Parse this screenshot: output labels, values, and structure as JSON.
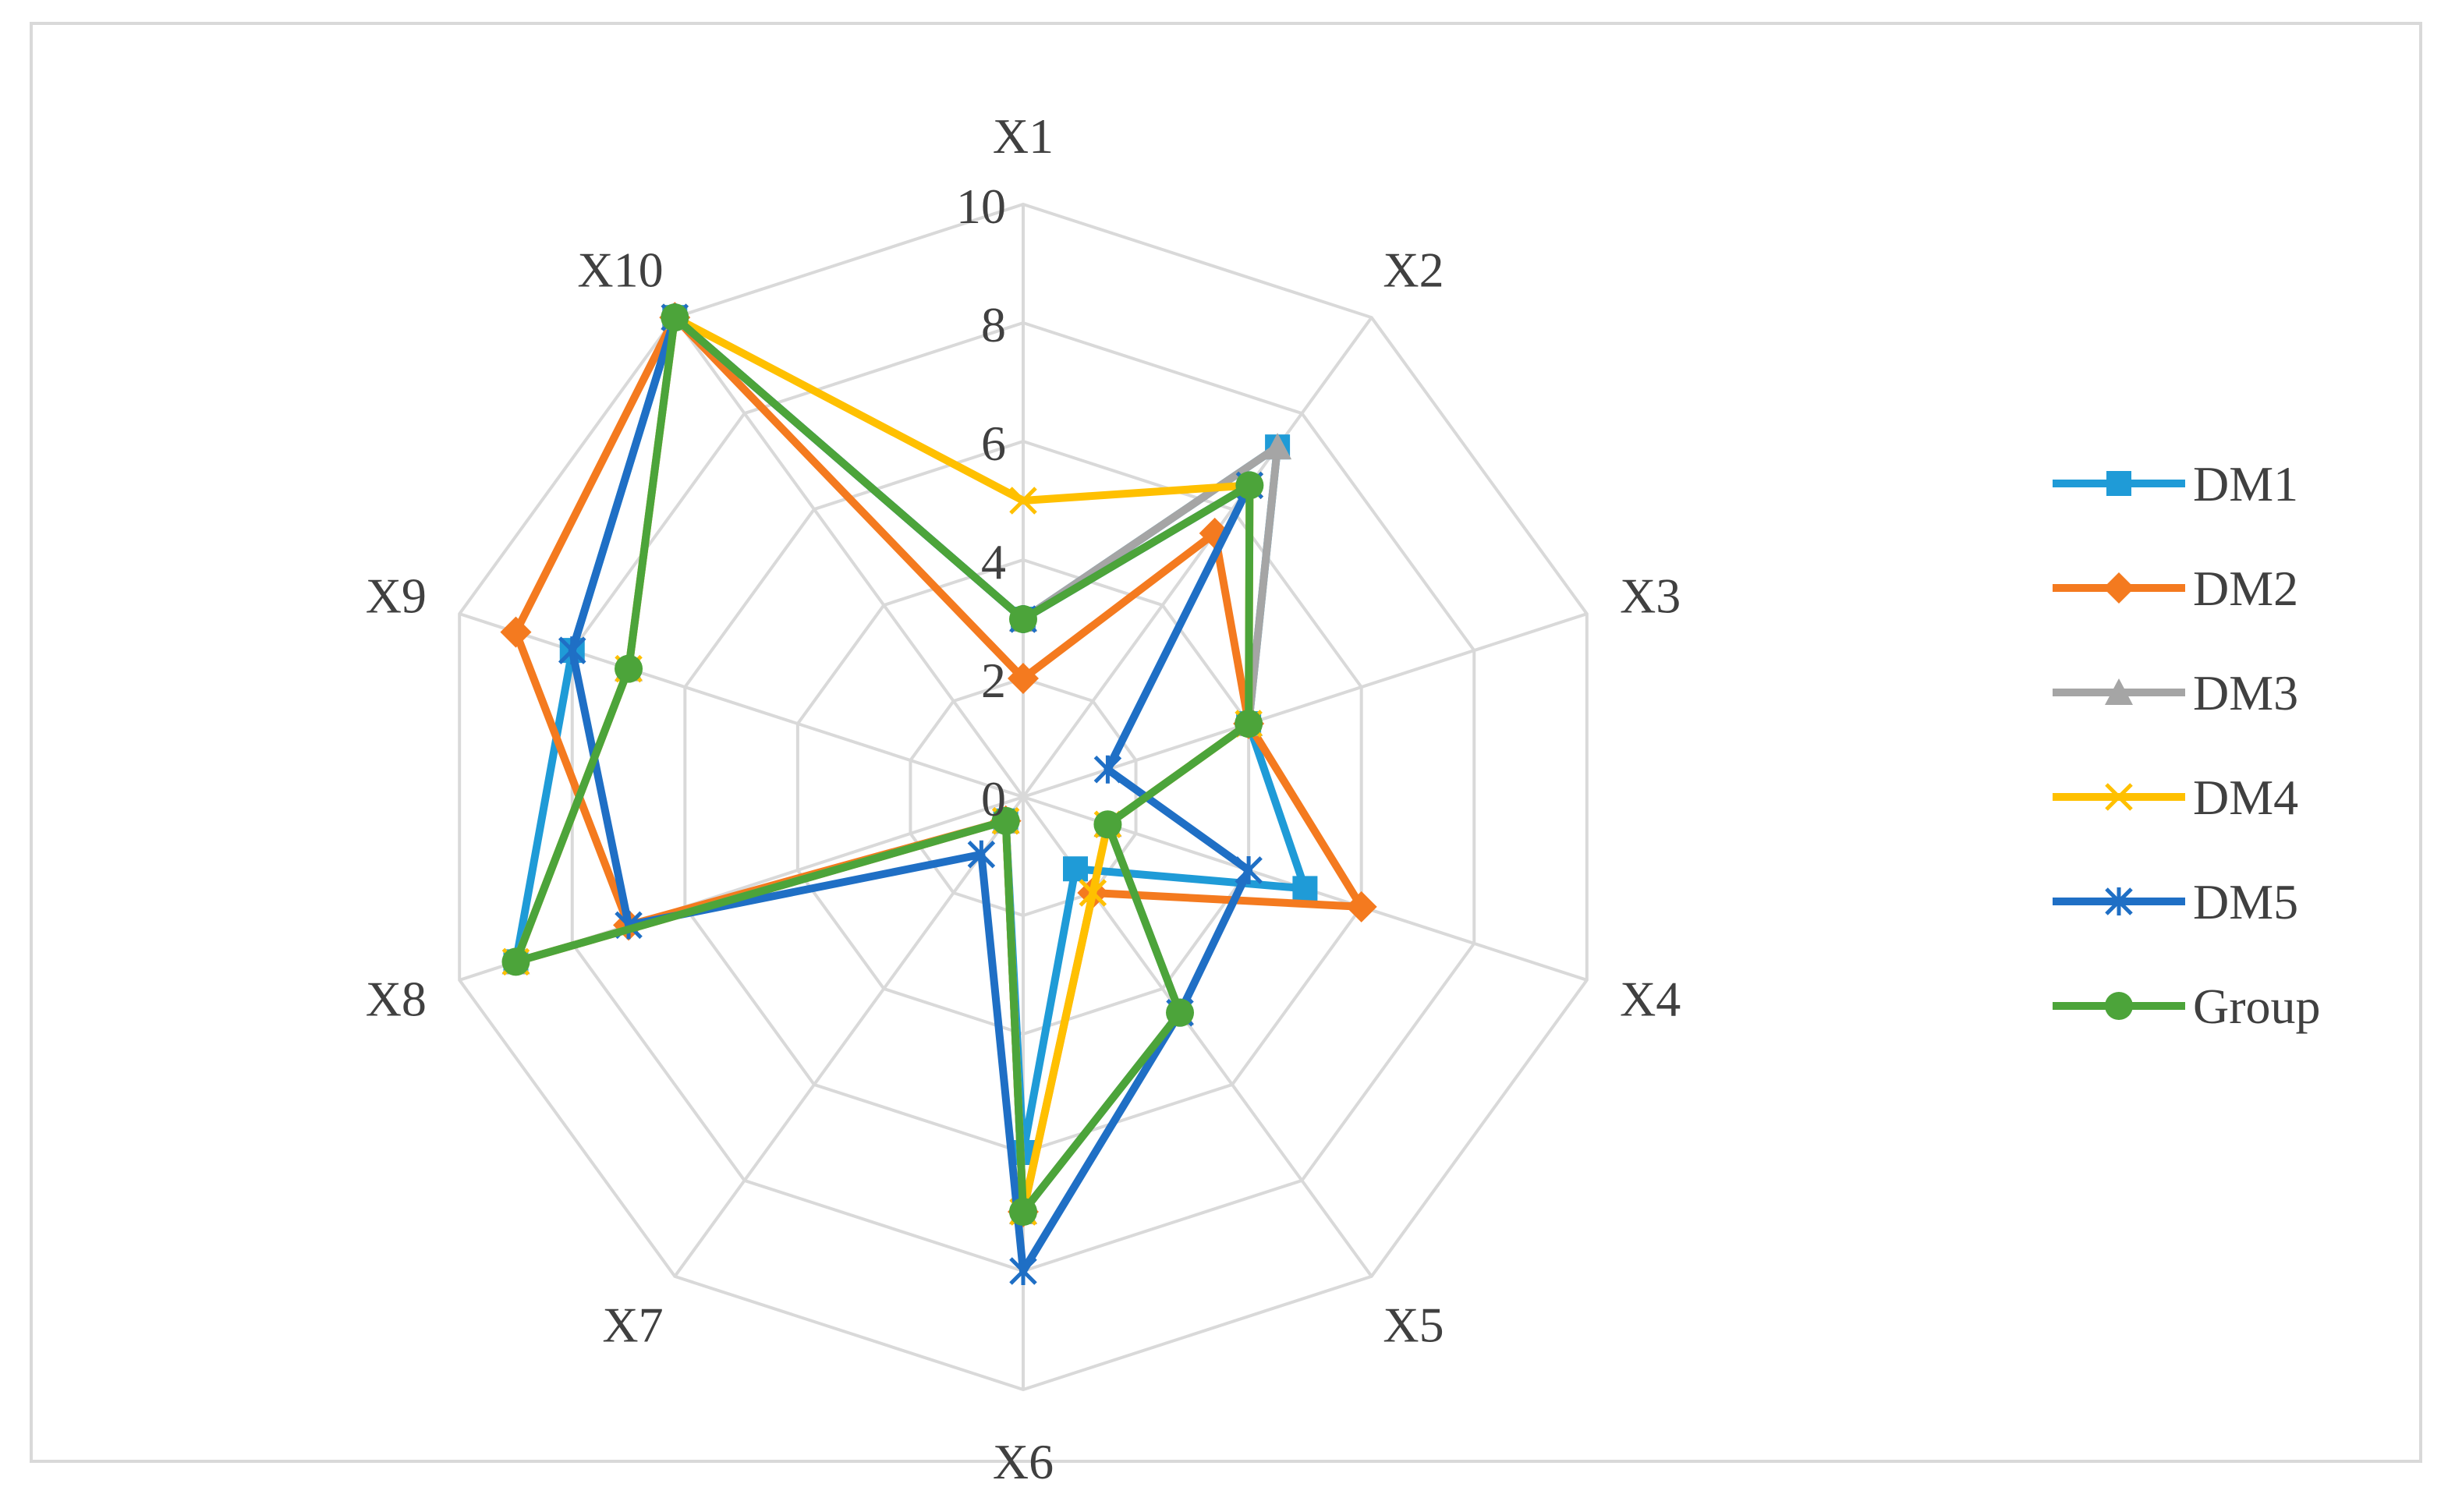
{
  "chart_data": {
    "type": "radar",
    "title": "",
    "categories": [
      "X1",
      "X2",
      "X3",
      "X4",
      "X5",
      "X6",
      "X7",
      "X8",
      "X9",
      "X10"
    ],
    "r_ticks": [
      0,
      2,
      4,
      6,
      8,
      10
    ],
    "r_range": [
      0,
      10
    ],
    "grid": true,
    "legend_position": "right",
    "series": [
      {
        "name": "DM1",
        "color": "#1f9bd7",
        "marker": "square",
        "values": [
          3,
          7.3,
          4,
          5,
          1.5,
          6,
          0.5,
          9,
          8,
          10
        ]
      },
      {
        "name": "DM2",
        "color": "#f47a1f",
        "marker": "diamond",
        "values": [
          2,
          5.5,
          4,
          6,
          2,
          7,
          0.5,
          7,
          9,
          10
        ]
      },
      {
        "name": "DM3",
        "color": "#a5a5a5",
        "marker": "triangle",
        "values": [
          3,
          7.3,
          4,
          1.5,
          4.5,
          7,
          0.5,
          9,
          7,
          10
        ]
      },
      {
        "name": "DM4",
        "color": "#ffc000",
        "marker": "x",
        "values": [
          5,
          6.5,
          4,
          1.5,
          2,
          7,
          0.5,
          9,
          7,
          10
        ]
      },
      {
        "name": "DM5",
        "color": "#1f6fc5",
        "marker": "asterisk",
        "values": [
          3,
          6.5,
          1.5,
          4,
          4.5,
          8,
          1.2,
          7,
          8,
          10
        ]
      },
      {
        "name": "Group",
        "color": "#4ca43a",
        "marker": "circle",
        "values": [
          3,
          6.5,
          4,
          1.5,
          4.5,
          7,
          0.5,
          9,
          7,
          10
        ]
      }
    ]
  }
}
